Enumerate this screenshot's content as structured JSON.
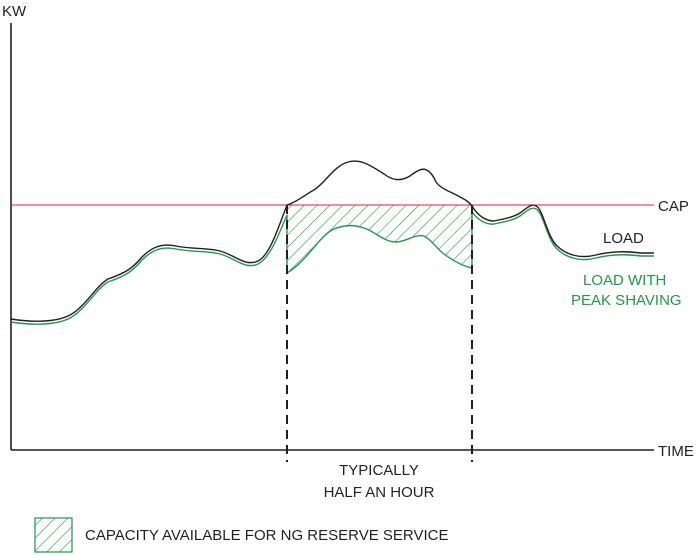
{
  "labels": {
    "y_axis": "KW",
    "x_axis": "TIME",
    "cap": "CAP",
    "load": "LOAD",
    "peak_line1": "LOAD WITH",
    "peak_line2": "PEAK SHAVING",
    "duration_line1": "TYPICALLY",
    "duration_line2": "HALF AN HOUR",
    "legend": "CAPACITY AVAILABLE FOR NG RESERVE SERVICE"
  },
  "colors": {
    "axis": "#231f20",
    "cap_line": "#e8212b",
    "load_line": "#231f20",
    "peak_shaving_line": "#1e9a48",
    "hatch": "#1e9a48"
  }
}
